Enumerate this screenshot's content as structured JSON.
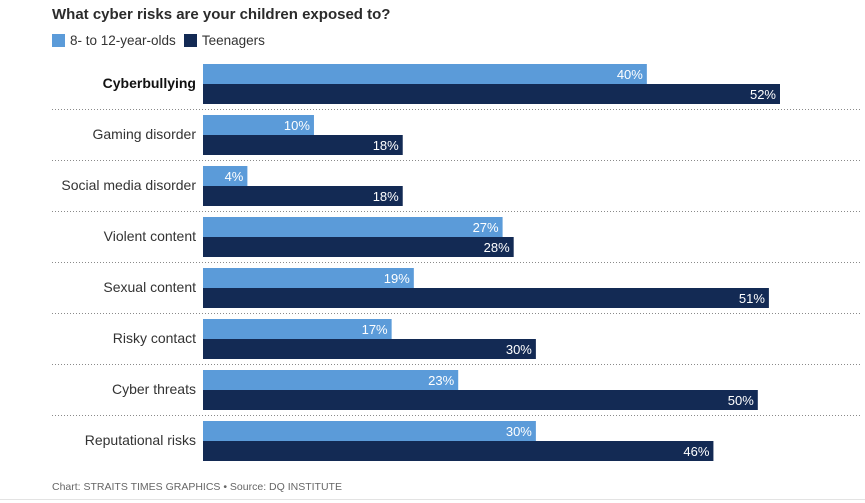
{
  "colors": {
    "kids": "#5b9bd9",
    "teens": "#132a54",
    "divider": "#8a8a8a"
  },
  "chart_data": {
    "type": "bar",
    "orientation": "horizontal",
    "title": "What cyber risks are your children exposed to?",
    "categories": [
      "Cyberbullying",
      "Gaming disorder",
      "Social media disorder",
      "Violent content",
      "Sexual content",
      "Risky contact",
      "Cyber threats",
      "Reputational risks"
    ],
    "highlighted_category": "Cyberbullying",
    "series": [
      {
        "name": "8- to 12-year-olds",
        "values": [
          40,
          10,
          4,
          27,
          19,
          17,
          23,
          30
        ]
      },
      {
        "name": "Teenagers",
        "values": [
          52,
          18,
          18,
          28,
          51,
          30,
          50,
          46
        ]
      }
    ],
    "value_suffix": "%",
    "xlim": [
      0,
      52
    ],
    "grid": false,
    "legend_position": "top-left"
  },
  "footer": {
    "source": "Chart: STRAITS TIMES GRAPHICS • Source: DQ INSTITUTE"
  }
}
